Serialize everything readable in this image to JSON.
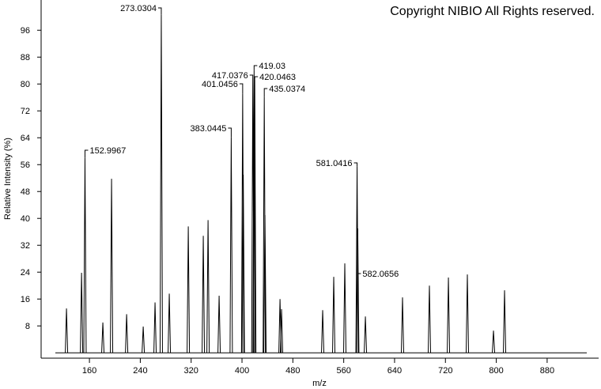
{
  "chart_data": {
    "type": "spectrum",
    "title": "Copyright NIBIO All Rights reserved.",
    "x_label": "m/z",
    "y_label": "Relative Intensity (%)",
    "color": "#000000",
    "x": [
      123.9,
      147.6,
      152.9967,
      181.1,
      194.8,
      218.5,
      244.6,
      263.2,
      273.0304,
      285.6,
      315.5,
      339.1,
      346.6,
      364.0,
      383.0445,
      401.0456,
      402.0,
      417.0376,
      419.03,
      420.0463,
      435.0374,
      436.1,
      459.8,
      462.2,
      526.9,
      544.3,
      561.7,
      581.0416,
      582.0656,
      594.1,
      652.5,
      694.8,
      724.7,
      754.5,
      795.6,
      813.0
    ],
    "values": [
      13.2,
      23.8,
      58,
      9,
      51.8,
      11.5,
      7.8,
      15,
      100.7,
      17.6,
      37.6,
      34.8,
      39.5,
      17,
      64.2,
      77.2,
      53,
      82.6,
      84.2,
      81.4,
      76.2,
      41,
      16,
      13,
      12.7,
      22.6,
      26.6,
      55.5,
      37,
      10.8,
      16.5,
      20,
      22.4,
      23.3,
      6.6,
      18.6
    ],
    "xlim": [
      84,
      961
    ],
    "ylim": [
      -1.6,
      105
    ],
    "xticks": [
      160,
      240,
      320,
      400,
      480,
      560,
      640,
      720,
      800,
      880
    ],
    "yticks": [
      8,
      16,
      24,
      32,
      40,
      48,
      56,
      64,
      72,
      80,
      88,
      96
    ]
  }
}
